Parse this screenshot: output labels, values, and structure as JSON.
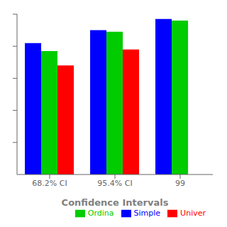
{
  "chart_data": {
    "type": "bar",
    "categories": [
      "68.2% CI",
      "95.4% CI",
      "99"
    ],
    "series": [
      {
        "name": "Simple",
        "color": "#0000ff",
        "values": [
          0.82,
          0.9,
          0.97
        ]
      },
      {
        "name": "Ordina",
        "color": "#00cc00",
        "values": [
          0.77,
          0.89,
          0.96
        ]
      },
      {
        "name": "Univer",
        "color": "#ff0000",
        "values": [
          0.68,
          0.78,
          0.0
        ]
      }
    ],
    "xlabel": "Confidence Intervals",
    "ylim": [
      0,
      1.0
    ],
    "yticks": [
      0.2,
      0.4,
      0.6,
      0.8,
      1.0
    ],
    "tick_labels": "x",
    "grid": false,
    "legend": "lower right"
  }
}
